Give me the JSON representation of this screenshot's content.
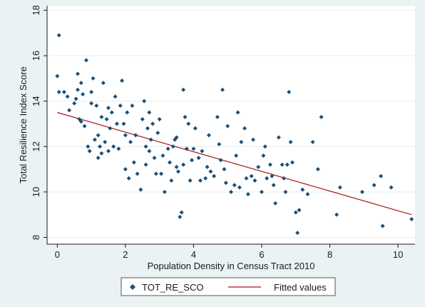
{
  "chart_data": {
    "type": "scatter",
    "xlabel": "Population Density in Census Tract 2010",
    "ylabel": "Total Resilience Index Score",
    "xlim": [
      -0.3,
      10.5
    ],
    "ylim": [
      7.7,
      18.2
    ],
    "x_ticks": [
      0,
      2,
      4,
      6,
      8,
      10
    ],
    "y_ticks": [
      8,
      10,
      12,
      14,
      16,
      18
    ],
    "grid": "horizontal",
    "legend": "bottom",
    "series": [
      {
        "name": "TOT_RE_SCO",
        "kind": "scatter",
        "color": "#1a4f77",
        "points": [
          [
            0.05,
            16.9
          ],
          [
            0.0,
            15.1
          ],
          [
            0.05,
            14.4
          ],
          [
            0.2,
            14.4
          ],
          [
            0.3,
            14.2
          ],
          [
            0.35,
            13.6
          ],
          [
            0.5,
            13.9
          ],
          [
            0.55,
            14.1
          ],
          [
            0.6,
            14.5
          ],
          [
            0.6,
            15.2
          ],
          [
            0.65,
            13.2
          ],
          [
            0.7,
            14.8
          ],
          [
            0.75,
            14.3
          ],
          [
            0.7,
            13.1
          ],
          [
            0.8,
            12.9
          ],
          [
            0.85,
            15.8
          ],
          [
            0.9,
            12.0
          ],
          [
            0.95,
            11.8
          ],
          [
            1.0,
            13.9
          ],
          [
            1.0,
            14.4
          ],
          [
            1.05,
            15.0
          ],
          [
            1.1,
            12.3
          ],
          [
            1.15,
            13.8
          ],
          [
            1.2,
            11.5
          ],
          [
            1.2,
            12.5
          ],
          [
            1.25,
            12.0
          ],
          [
            1.3,
            11.7
          ],
          [
            1.3,
            13.3
          ],
          [
            1.35,
            14.8
          ],
          [
            1.4,
            12.2
          ],
          [
            1.45,
            13.2
          ],
          [
            1.5,
            13.7
          ],
          [
            1.5,
            11.8
          ],
          [
            1.55,
            12.8
          ],
          [
            1.6,
            13.5
          ],
          [
            1.65,
            12.0
          ],
          [
            1.7,
            14.2
          ],
          [
            1.75,
            13.0
          ],
          [
            1.8,
            11.9
          ],
          [
            1.85,
            13.8
          ],
          [
            1.9,
            14.9
          ],
          [
            1.95,
            13.0
          ],
          [
            2.0,
            11.0
          ],
          [
            2.0,
            12.5
          ],
          [
            2.05,
            13.5
          ],
          [
            2.1,
            10.6
          ],
          [
            2.15,
            12.2
          ],
          [
            2.2,
            13.8
          ],
          [
            2.25,
            11.3
          ],
          [
            2.3,
            12.5
          ],
          [
            2.35,
            10.8
          ],
          [
            2.45,
            10.1
          ],
          [
            2.5,
            13.2
          ],
          [
            2.55,
            14.0
          ],
          [
            2.6,
            12.0
          ],
          [
            2.6,
            11.2
          ],
          [
            2.65,
            12.8
          ],
          [
            2.7,
            13.5
          ],
          [
            2.7,
            11.8
          ],
          [
            2.75,
            12.3
          ],
          [
            2.8,
            13.0
          ],
          [
            2.85,
            11.5
          ],
          [
            2.9,
            10.8
          ],
          [
            2.95,
            12.6
          ],
          [
            3.0,
            13.2
          ],
          [
            3.05,
            10.8
          ],
          [
            3.1,
            11.6
          ],
          [
            3.15,
            10.0
          ],
          [
            3.25,
            11.9
          ],
          [
            3.3,
            11.3
          ],
          [
            3.35,
            10.5
          ],
          [
            3.4,
            12.0
          ],
          [
            3.45,
            12.3
          ],
          [
            3.5,
            12.4
          ],
          [
            3.5,
            11.1
          ],
          [
            3.55,
            10.9
          ],
          [
            3.6,
            8.9
          ],
          [
            3.65,
            9.1
          ],
          [
            3.7,
            11.2
          ],
          [
            3.7,
            14.5
          ],
          [
            3.75,
            13.3
          ],
          [
            3.8,
            11.9
          ],
          [
            3.85,
            13.0
          ],
          [
            3.9,
            10.5
          ],
          [
            3.95,
            11.4
          ],
          [
            4.0,
            11.9
          ],
          [
            4.05,
            12.8
          ],
          [
            4.15,
            11.5
          ],
          [
            4.2,
            10.5
          ],
          [
            4.25,
            11.8
          ],
          [
            4.35,
            10.6
          ],
          [
            4.4,
            11.1
          ],
          [
            4.45,
            12.5
          ],
          [
            4.5,
            10.9
          ],
          [
            4.6,
            10.7
          ],
          [
            4.7,
            13.3
          ],
          [
            4.75,
            12.1
          ],
          [
            4.8,
            11.4
          ],
          [
            4.85,
            14.5
          ],
          [
            4.9,
            11.0
          ],
          [
            4.95,
            10.4
          ],
          [
            5.0,
            12.9
          ],
          [
            5.1,
            10.0
          ],
          [
            5.2,
            10.3
          ],
          [
            5.25,
            11.6
          ],
          [
            5.3,
            13.5
          ],
          [
            5.35,
            10.2
          ],
          [
            5.4,
            12.2
          ],
          [
            5.5,
            12.8
          ],
          [
            5.55,
            10.6
          ],
          [
            5.6,
            9.9
          ],
          [
            5.7,
            10.7
          ],
          [
            5.75,
            12.3
          ],
          [
            5.8,
            10.5
          ],
          [
            5.9,
            11.1
          ],
          [
            6.0,
            10.0
          ],
          [
            6.05,
            11.6
          ],
          [
            6.1,
            12.0
          ],
          [
            6.15,
            10.6
          ],
          [
            6.25,
            11.2
          ],
          [
            6.3,
            10.7
          ],
          [
            6.35,
            10.3
          ],
          [
            6.4,
            9.5
          ],
          [
            6.5,
            12.4
          ],
          [
            6.6,
            11.2
          ],
          [
            6.65,
            10.6
          ],
          [
            6.7,
            10.0
          ],
          [
            6.75,
            11.2
          ],
          [
            6.8,
            14.4
          ],
          [
            6.85,
            12.2
          ],
          [
            6.9,
            11.3
          ],
          [
            7.0,
            9.1
          ],
          [
            7.05,
            8.2
          ],
          [
            7.1,
            9.2
          ],
          [
            7.2,
            10.1
          ],
          [
            7.35,
            9.9
          ],
          [
            7.5,
            12.2
          ],
          [
            7.65,
            11.0
          ],
          [
            7.75,
            13.3
          ],
          [
            8.2,
            9.0
          ],
          [
            8.3,
            10.2
          ],
          [
            8.95,
            10.0
          ],
          [
            9.3,
            10.3
          ],
          [
            9.5,
            10.7
          ],
          [
            9.55,
            8.5
          ],
          [
            9.8,
            10.2
          ],
          [
            10.4,
            8.8
          ]
        ]
      },
      {
        "name": "Fitted values",
        "kind": "line",
        "color": "#a3161c",
        "x": [
          0,
          10.4
        ],
        "y": [
          13.5,
          9.0
        ]
      }
    ]
  }
}
